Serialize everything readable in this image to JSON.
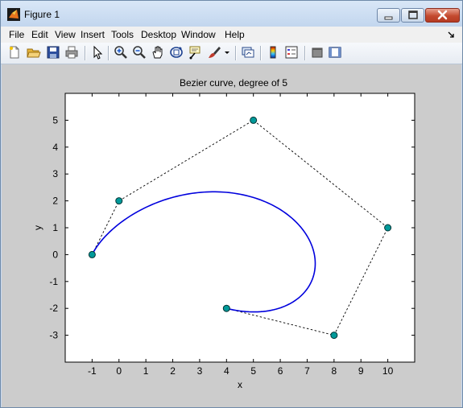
{
  "window": {
    "title": "Figure 1",
    "icon": "matlab-logo-icon",
    "controls": [
      "minimize-icon",
      "maximize-icon",
      "close-icon"
    ]
  },
  "menu": {
    "items": [
      "File",
      "Edit",
      "View",
      "Insert",
      "Tools",
      "Desktop",
      "Window",
      "Help"
    ]
  },
  "toolbar": {
    "tools": [
      "new-figure-icon",
      "open-file-icon",
      "save-icon",
      "print-icon",
      "edit-plot-arrow-icon",
      "zoom-in-icon",
      "zoom-out-icon",
      "pan-hand-icon",
      "rotate-3d-icon",
      "data-cursor-icon",
      "brush-icon",
      "brush-dropdown-icon",
      "link-plot-icon",
      "insert-colorbar-icon",
      "insert-legend-icon",
      "hide-plot-tools-icon",
      "show-plot-tools-icon"
    ]
  },
  "colors": {
    "curve": "#0000dd",
    "control_points": "#009999",
    "polygon": "#000000",
    "figure_bg": "#cccccc"
  },
  "chart_data": {
    "type": "line",
    "title": "Bezier curve, degree of 5",
    "xlabel": "x",
    "ylabel": "y",
    "xlim": [
      -2,
      11
    ],
    "ylim": [
      -4,
      6
    ],
    "xticks": [
      -1,
      0,
      1,
      2,
      3,
      4,
      5,
      6,
      7,
      8,
      9,
      10
    ],
    "yticks": [
      -3,
      -2,
      -1,
      0,
      1,
      2,
      3,
      4,
      5
    ],
    "grid": false,
    "series": [
      {
        "kind": "control_polygon",
        "style": "dashed",
        "x": [
          -1,
          0,
          5,
          10,
          8,
          4
        ],
        "y": [
          0,
          2,
          5,
          1,
          -3,
          -2
        ]
      },
      {
        "kind": "bezier_curve",
        "style": "solid",
        "degree": 5,
        "control_x": [
          -1,
          0,
          5,
          10,
          8,
          4
        ],
        "control_y": [
          0,
          2,
          5,
          1,
          -3,
          -2
        ]
      }
    ]
  }
}
